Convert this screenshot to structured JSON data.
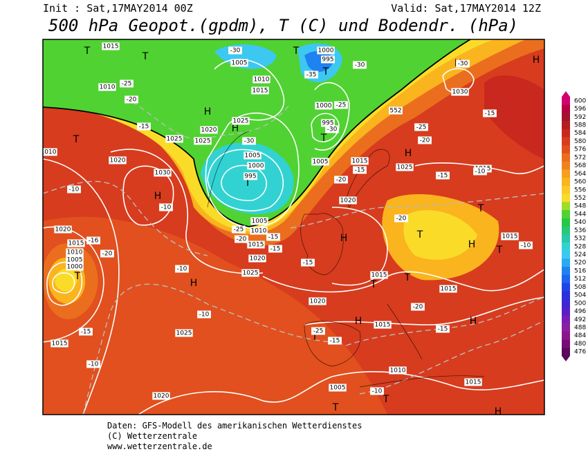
{
  "header": {
    "init": "Init : Sat,17MAY2014 00Z",
    "valid": "Valid: Sat,17MAY2014 12Z",
    "title": "500 hPa Geopot.(gpdm), T (C) und Bodendr. (hPa)"
  },
  "colorbar": {
    "levels": [
      600,
      596,
      592,
      588,
      584,
      580,
      576,
      572,
      568,
      564,
      560,
      556,
      552,
      548,
      544,
      540,
      536,
      532,
      528,
      524,
      520,
      516,
      512,
      508,
      504,
      500,
      496,
      492,
      488,
      484,
      480,
      476
    ],
    "colors": [
      "#d2006e",
      "#b40041",
      "#a0142d",
      "#b41e1e",
      "#c8281e",
      "#d73c1e",
      "#e1501e",
      "#eb6e1e",
      "#f0821e",
      "#f5a01e",
      "#fab41e",
      "#fac828",
      "#fadc28",
      "#a0dc28",
      "#50d232",
      "#28c846",
      "#28c878",
      "#28c8aa",
      "#32d2d2",
      "#3cc8f0",
      "#28aaf0",
      "#1e82f0",
      "#1e64f0",
      "#1e46e6",
      "#2832dc",
      "#3c28d2",
      "#5a1ec8",
      "#781eb4",
      "#8c1ea0",
      "#8c148c",
      "#780a78",
      "#5a0a5a"
    ]
  },
  "map_labels": [
    "H",
    "H",
    "H",
    "H",
    "H",
    "H",
    "H",
    "H",
    "H",
    "H",
    "H",
    "H",
    "T",
    "T",
    "T",
    "T",
    "T",
    "T",
    "T",
    "T",
    "T",
    "T",
    "T",
    "T",
    "T",
    "T",
    "T",
    "T",
    "1015",
    "1010",
    "1020",
    "1025",
    "1025",
    "1010",
    "1020",
    "1030",
    "1000",
    "995",
    "1005",
    "1010",
    "1015",
    "1025",
    "995",
    "1000",
    "1005",
    "1000",
    "995",
    "1005",
    "1015",
    "1025",
    "1015",
    "1020",
    "1005",
    "1010",
    "1015",
    "1020",
    "1025",
    "1020",
    "1015",
    "1010",
    "1005",
    "1000",
    "1015",
    "1015",
    "1015",
    "1020",
    "1025",
    "1015",
    "1015",
    "1010",
    "1015",
    "1005",
    "1020",
    "1030",
    "552",
    "-30",
    "-35",
    "-30",
    "-25",
    "-20",
    "-15",
    "-10",
    "-10",
    "-30",
    "-25",
    "-30",
    "-20",
    "-15",
    "-15",
    "-15",
    "-25",
    "-20",
    "-10",
    "-30",
    "-20",
    "-25",
    "-20",
    "-15",
    "-15",
    "-15",
    "-10",
    "-16",
    "-20",
    "-10",
    "-15",
    "-10",
    "-25",
    "-15",
    "-20",
    "-15",
    "-10",
    "-10"
  ],
  "footer": [
    "Daten: GFS-Modell des amerikanischen Wetterdienstes",
    "(C) Wetterzentrale",
    "www.wetterzentrale.de"
  ]
}
